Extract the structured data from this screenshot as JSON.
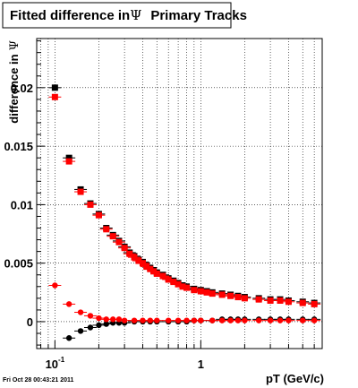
{
  "title_prefix": "Fitted difference in",
  "title_symbol": "Ψ",
  "title_suffix": "Primary Tracks",
  "footer_timestamp": "Fri Oct 28 00:43:21 2011",
  "chart_data": {
    "type": "scatter",
    "xlabel": "pT (GeV/c)",
    "ylabel_prefix": "difference in",
    "ylabel_symbol": "Ψ",
    "xscale": "log",
    "xlim": [
      0.075,
      6.8
    ],
    "ylim": [
      -0.0023,
      0.0242
    ],
    "grid": true,
    "x_ticks": [
      {
        "value": 0.1,
        "label": "10",
        "sup": "-1"
      },
      {
        "value": 1,
        "label": "1",
        "sup": ""
      }
    ],
    "y_ticks": [
      {
        "value": 0,
        "label": "0"
      },
      {
        "value": 0.005,
        "label": "0.005"
      },
      {
        "value": 0.01,
        "label": "0.01"
      },
      {
        "value": 0.015,
        "label": "0.015"
      },
      {
        "value": 0.02,
        "label": "0.02"
      }
    ],
    "colors": {
      "red": "#ff0000",
      "black": "#000000"
    },
    "series": [
      {
        "color": "red",
        "marker": "square",
        "x": [
          0.1,
          0.125,
          0.15,
          0.175,
          0.2,
          0.225,
          0.25,
          0.275,
          0.3,
          0.325,
          0.35,
          0.375,
          0.4,
          0.425,
          0.45,
          0.475,
          0.5,
          0.55,
          0.6,
          0.65,
          0.7,
          0.75,
          0.8,
          0.9,
          1.0,
          1.1,
          1.2,
          1.4,
          1.6,
          1.8,
          2.0,
          2.5,
          3.0,
          3.5,
          4.0,
          5.0,
          6.0
        ],
        "y": [
          0.0192,
          0.0137,
          0.0111,
          0.01,
          0.0091,
          0.0079,
          0.0073,
          0.0068,
          0.0063,
          0.0058,
          0.0055,
          0.0052,
          0.005,
          0.0047,
          0.0045,
          0.0043,
          0.0041,
          0.0039,
          0.0036,
          0.0034,
          0.0032,
          0.003,
          0.0029,
          0.0027,
          0.0026,
          0.0025,
          0.0024,
          0.0023,
          0.0022,
          0.0021,
          0.002,
          0.0019,
          0.0018,
          0.0018,
          0.0017,
          0.0016,
          0.0015
        ]
      },
      {
        "color": "black",
        "marker": "square",
        "x": [
          0.1,
          0.125,
          0.15,
          0.175,
          0.2,
          0.225,
          0.25,
          0.275,
          0.3,
          0.325,
          0.35,
          0.375,
          0.4,
          0.425,
          0.45,
          0.475,
          0.5,
          0.55,
          0.6,
          0.65,
          0.7,
          0.75,
          0.8,
          0.9,
          1.0,
          1.1,
          1.2,
          1.4,
          1.6,
          1.8,
          2.0,
          2.5,
          3.0,
          3.5,
          4.0,
          5.0,
          6.0
        ],
        "y": [
          0.02,
          0.014,
          0.0113,
          0.0101,
          0.0092,
          0.008,
          0.0074,
          0.0069,
          0.0064,
          0.0059,
          0.0056,
          0.0053,
          0.0051,
          0.0048,
          0.0046,
          0.0044,
          0.0042,
          0.004,
          0.0037,
          0.0035,
          0.0033,
          0.0031,
          0.003,
          0.0028,
          0.0027,
          0.0026,
          0.0025,
          0.0024,
          0.0023,
          0.0022,
          0.0021,
          0.002,
          0.0019,
          0.0019,
          0.0018,
          0.0017,
          0.0016
        ]
      },
      {
        "color": "red",
        "marker": "circle",
        "x": [
          0.1,
          0.125,
          0.15,
          0.175,
          0.2,
          0.225,
          0.25,
          0.275,
          0.3,
          0.35,
          0.4,
          0.45,
          0.5,
          0.6,
          0.7,
          0.8,
          0.9,
          1.0,
          1.2,
          1.4,
          1.6,
          1.8,
          2.0,
          2.5,
          3.0,
          3.5,
          4.0,
          5.0,
          6.0
        ],
        "y": [
          0.0031,
          0.0015,
          0.0008,
          0.0005,
          0.0003,
          0.0002,
          0.0002,
          0.0002,
          0.0001,
          0.0001,
          0.0001,
          0.0001,
          0.0001,
          0.0001,
          0.0001,
          0.0001,
          0.0001,
          0.0001,
          0.0001,
          0.0001,
          0.0001,
          0.0001,
          0.0001,
          0.0001,
          0.0001,
          0.0001,
          0.0001,
          0.0001,
          0.0001
        ]
      },
      {
        "color": "black",
        "marker": "circle",
        "x": [
          0.125,
          0.15,
          0.175,
          0.2,
          0.225,
          0.25,
          0.275,
          0.3,
          0.35,
          0.4,
          0.45,
          0.5,
          0.6,
          0.7,
          0.8,
          0.9,
          1.0,
          1.2,
          1.4,
          1.6,
          1.8,
          2.0,
          2.5,
          3.0,
          3.5,
          4.0,
          5.0,
          6.0
        ],
        "y": [
          -0.0014,
          -0.0008,
          -0.0005,
          -0.0003,
          -0.0002,
          -0.0001,
          -0.0001,
          -0.0001,
          0.0,
          0.0,
          0.0,
          0.0,
          0.0,
          0.0,
          0.0,
          0.0001,
          0.0001,
          0.0001,
          0.0002,
          0.0002,
          0.0002,
          0.0002,
          0.0002,
          0.0002,
          0.0002,
          0.0002,
          0.0002,
          0.0002
        ]
      }
    ]
  }
}
